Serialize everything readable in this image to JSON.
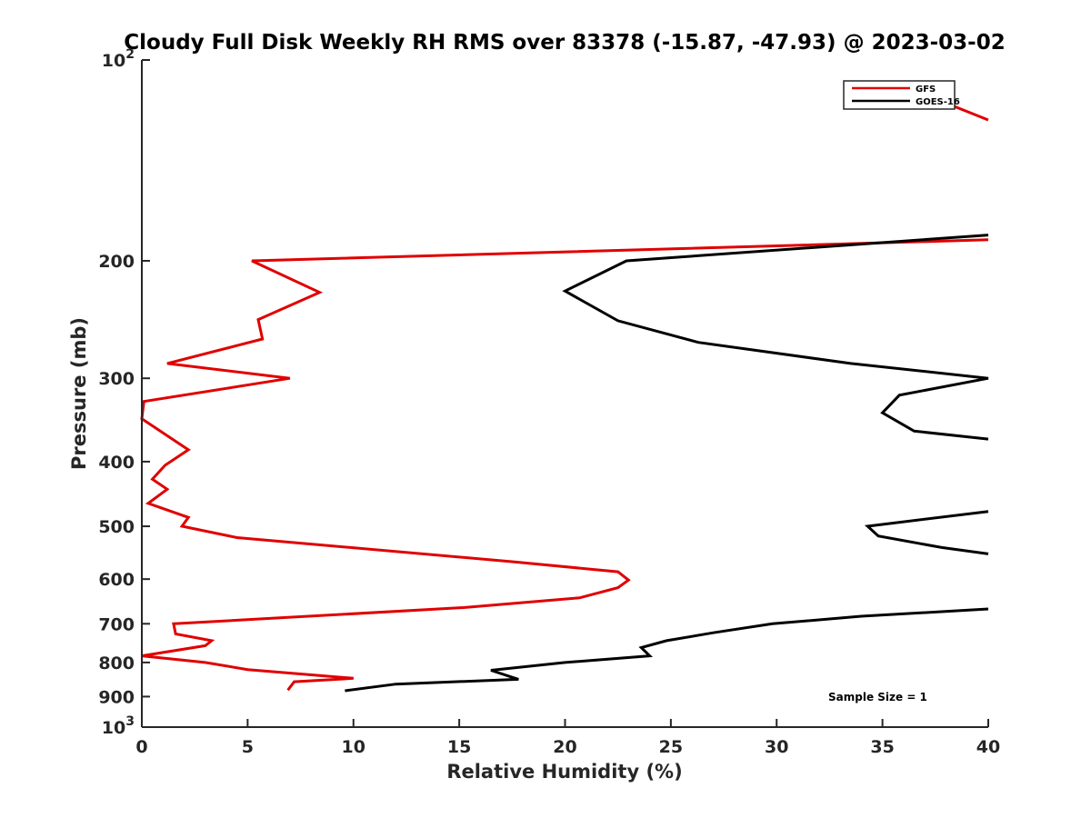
{
  "chart_data": {
    "type": "line",
    "title": "Cloudy Full Disk Weekly RH RMS over 83378 (-15.87, -47.93) @ 2023-03-02",
    "xlabel": "Relative Humidity (%)",
    "ylabel": "Pressure (mb)",
    "xlim": [
      0,
      40
    ],
    "ylim": [
      100,
      1000
    ],
    "y_scale": "log",
    "y_reversed": true,
    "grid": false,
    "legend_position": "top-right",
    "x_ticks": [
      {
        "value": 0,
        "label": "0"
      },
      {
        "value": 5,
        "label": "5"
      },
      {
        "value": 10,
        "label": "10"
      },
      {
        "value": 15,
        "label": "15"
      },
      {
        "value": 20,
        "label": "20"
      },
      {
        "value": 25,
        "label": "25"
      },
      {
        "value": 30,
        "label": "30"
      },
      {
        "value": 35,
        "label": "35"
      },
      {
        "value": 40,
        "label": "40"
      }
    ],
    "y_ticks": [
      {
        "value": 100,
        "base": "10",
        "exp": "2"
      },
      {
        "value": 200,
        "label": "200"
      },
      {
        "value": 300,
        "label": "300"
      },
      {
        "value": 400,
        "label": "400"
      },
      {
        "value": 500,
        "label": "500"
      },
      {
        "value": 600,
        "label": "600"
      },
      {
        "value": 700,
        "label": "700"
      },
      {
        "value": 800,
        "label": "800"
      },
      {
        "value": 900,
        "label": "900"
      },
      {
        "value": 1000,
        "base": "10",
        "exp": "3"
      }
    ],
    "series": [
      {
        "name": "GFS",
        "color": "#e00000",
        "points": [
          [
            37.7,
            115
          ],
          [
            40,
            123
          ],
          null,
          [
            40,
            186
          ],
          [
            5.2,
            200
          ],
          [
            8.4,
            223
          ],
          [
            5.5,
            245
          ],
          [
            5.7,
            262
          ],
          [
            1.2,
            285
          ],
          [
            7,
            300
          ],
          [
            0.1,
            325
          ],
          [
            0,
            345
          ],
          [
            2.2,
            384
          ],
          [
            1.1,
            405
          ],
          [
            0.5,
            425
          ],
          [
            1.2,
            440
          ],
          [
            0.3,
            462
          ],
          [
            2.2,
            485
          ],
          [
            1.9,
            500
          ],
          [
            4.5,
            520
          ],
          [
            17.5,
            565
          ],
          [
            22.5,
            585
          ],
          [
            23,
            602
          ],
          [
            22.5,
            618
          ],
          [
            20.7,
            640
          ],
          [
            15.2,
            662
          ],
          [
            1.5,
            700
          ],
          [
            1.6,
            725
          ],
          [
            3.3,
            742
          ],
          [
            3,
            755
          ],
          [
            0,
            782
          ],
          [
            3,
            800
          ],
          [
            5,
            820
          ],
          [
            10,
            845
          ],
          [
            7.2,
            855
          ],
          [
            6.9,
            880
          ]
        ]
      },
      {
        "name": "GOES-16",
        "color": "#000000",
        "points": [
          [
            40,
            183
          ],
          [
            22.9,
            200
          ],
          [
            20,
            222
          ],
          [
            22.5,
            246
          ],
          [
            26.3,
            265
          ],
          [
            33.5,
            285
          ],
          [
            40,
            300
          ],
          [
            35.8,
            318
          ],
          [
            35,
            338
          ],
          [
            36.5,
            360
          ],
          [
            40,
            370
          ],
          null,
          [
            40,
            475
          ],
          [
            34.3,
            500
          ],
          [
            34.8,
            517
          ],
          [
            37.8,
            538
          ],
          [
            40,
            550
          ],
          null,
          [
            40,
            665
          ],
          [
            34,
            682
          ],
          [
            29.8,
            700
          ],
          [
            27,
            722
          ],
          [
            24.8,
            742
          ],
          [
            23.6,
            760
          ],
          [
            24,
            782
          ],
          [
            20,
            800
          ],
          [
            16.5,
            822
          ],
          [
            17.8,
            848
          ],
          [
            12,
            862
          ],
          [
            9.6,
            882
          ]
        ]
      }
    ],
    "annotations": [
      {
        "text": "Sample Size = 1"
      }
    ]
  }
}
